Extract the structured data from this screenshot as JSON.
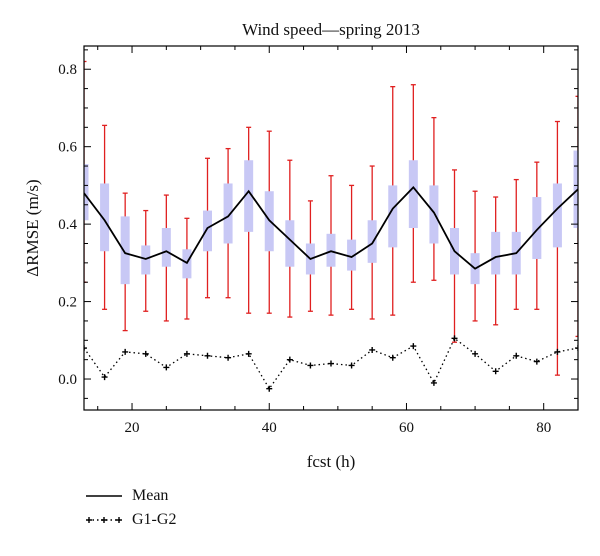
{
  "chart_data": {
    "type": "line",
    "title": "Wind speed—spring 2013",
    "xlabel": "fcst (h)",
    "ylabel": "ΔRMSE (m/s)",
    "xlim": [
      13,
      85
    ],
    "ylim": [
      -0.08,
      0.86
    ],
    "xticks": [
      "20",
      "40",
      "60",
      "80"
    ],
    "yticks": [
      "0.0",
      "0.2",
      "0.4",
      "0.6",
      "0.8"
    ],
    "grid": false,
    "legend_position": "bottom-left",
    "x": [
      13,
      16,
      19,
      22,
      25,
      28,
      31,
      34,
      37,
      40,
      43,
      46,
      49,
      52,
      55,
      58,
      61,
      64,
      67,
      70,
      73,
      76,
      79,
      82,
      85
    ],
    "series": [
      {
        "name": "Mean",
        "style": "solid",
        "color": "#000000",
        "values": [
          0.48,
          0.41,
          0.325,
          0.31,
          0.33,
          0.3,
          0.39,
          0.42,
          0.485,
          0.41,
          0.36,
          0.31,
          0.33,
          0.315,
          0.35,
          0.44,
          0.495,
          0.43,
          0.33,
          0.285,
          0.315,
          0.325,
          0.385,
          0.44,
          0.49
        ]
      },
      {
        "name": "G1-G2",
        "style": "dotted-plus",
        "color": "#000000",
        "values": [
          0.08,
          0.005,
          0.07,
          0.065,
          0.03,
          0.065,
          0.06,
          0.055,
          0.065,
          -0.025,
          0.05,
          0.035,
          0.04,
          0.035,
          0.075,
          0.055,
          0.085,
          -0.01,
          0.105,
          0.065,
          0.02,
          0.06,
          0.045,
          0.07,
          0.08
        ]
      }
    ],
    "ranges": {
      "color": "#e02020",
      "low": [
        0.25,
        0.18,
        0.125,
        0.175,
        0.15,
        0.155,
        0.21,
        0.21,
        0.17,
        0.17,
        0.16,
        0.175,
        0.165,
        0.18,
        0.155,
        0.165,
        0.25,
        0.255,
        0.095,
        0.15,
        0.14,
        0.18,
        0.18,
        0.01,
        0.11
      ],
      "high": [
        0.82,
        0.655,
        0.48,
        0.435,
        0.475,
        0.415,
        0.57,
        0.595,
        0.65,
        0.64,
        0.565,
        0.46,
        0.525,
        0.5,
        0.55,
        0.755,
        0.76,
        0.675,
        0.54,
        0.485,
        0.47,
        0.515,
        0.56,
        0.665,
        0.73
      ]
    },
    "boxes": {
      "color": "#c8c8f5",
      "low": [
        0.41,
        0.33,
        0.245,
        0.27,
        0.29,
        0.26,
        0.33,
        0.35,
        0.38,
        0.33,
        0.29,
        0.27,
        0.29,
        0.28,
        0.3,
        0.34,
        0.39,
        0.35,
        0.27,
        0.245,
        0.27,
        0.27,
        0.31,
        0.34,
        0.39
      ],
      "high": [
        0.555,
        0.505,
        0.42,
        0.345,
        0.39,
        0.335,
        0.435,
        0.505,
        0.565,
        0.485,
        0.41,
        0.35,
        0.375,
        0.36,
        0.41,
        0.5,
        0.565,
        0.5,
        0.39,
        0.325,
        0.38,
        0.38,
        0.47,
        0.505,
        0.59
      ]
    }
  }
}
